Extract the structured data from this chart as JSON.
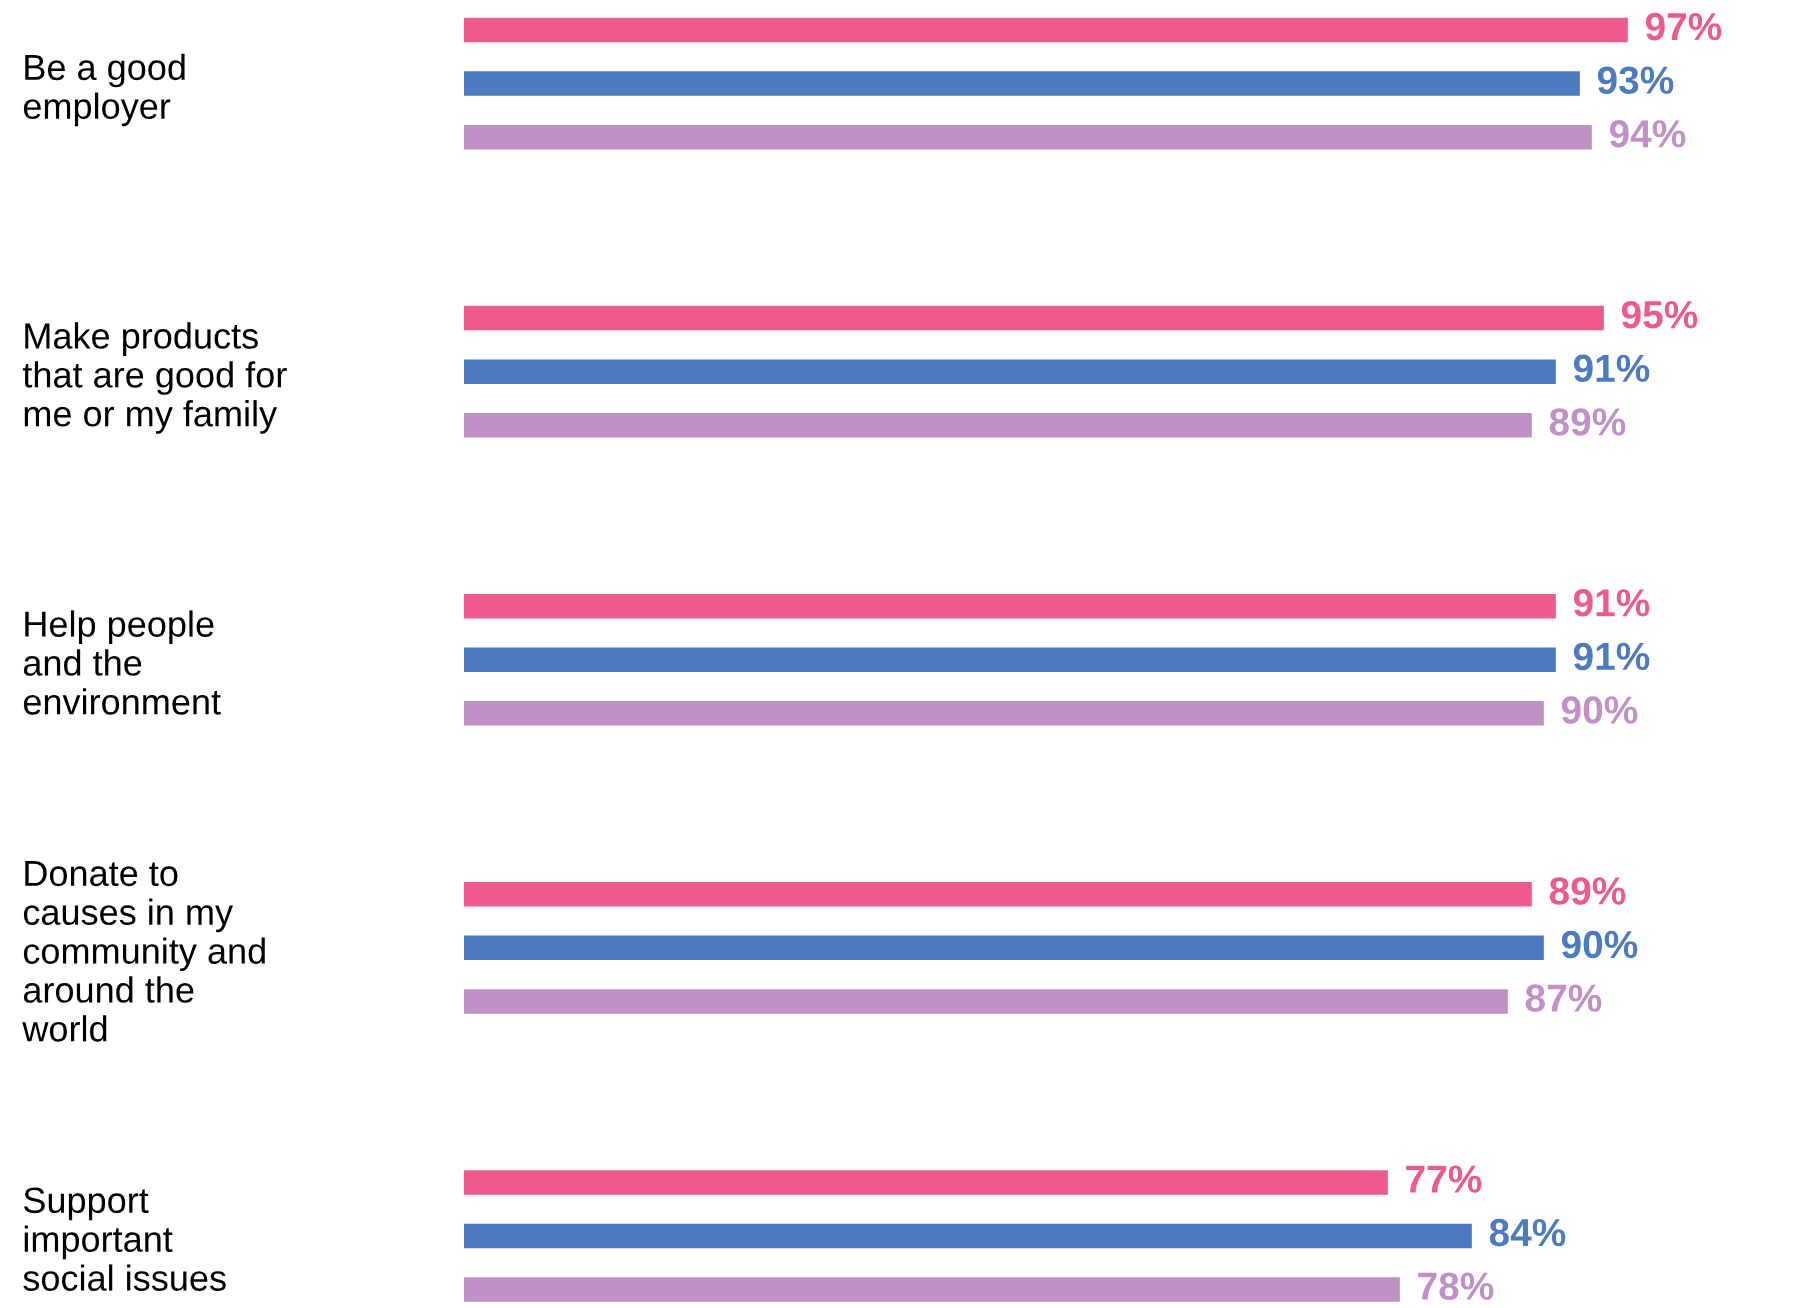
{
  "chart_data": {
    "type": "bar",
    "orientation": "horizontal",
    "categories": [
      "Be a good\nemployer",
      "Make products\nthat are good for\nme or my family",
      "Help people\nand the\nenvironment",
      "Donate to\ncauses in my\ncommunity and\naround the\nworld",
      "Support\nimportant\nsocial issues"
    ],
    "series": [
      {
        "color": "#ee5a8a",
        "values": [
          97,
          95,
          91,
          89,
          77
        ],
        "value_labels": [
          "97%",
          "95%",
          "91%",
          "89%",
          "77%"
        ]
      },
      {
        "color": "#4d7bbf",
        "values": [
          93,
          91,
          91,
          90,
          84
        ],
        "value_labels": [
          "93%",
          "91%",
          "91%",
          "90%",
          "84%"
        ]
      },
      {
        "color": "#c190c6",
        "values": [
          94,
          89,
          90,
          87,
          78
        ],
        "value_labels": [
          "94%",
          "89%",
          "90%",
          "87%",
          "78%"
        ]
      }
    ],
    "tick_labels": "y",
    "grid": false,
    "legend": false
  }
}
